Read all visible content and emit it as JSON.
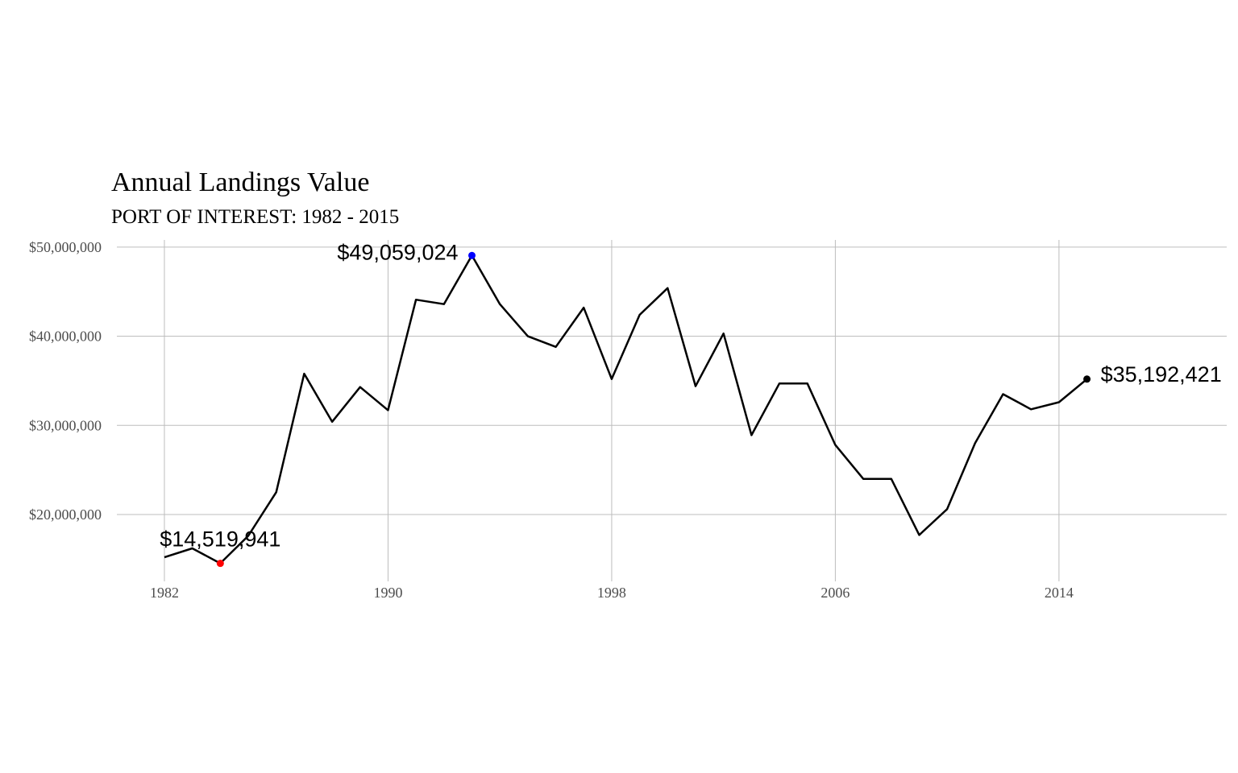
{
  "chart_data": {
    "type": "line",
    "title": "Annual Landings Value",
    "subtitle": "PORT OF INTEREST: 1982 - 2015",
    "xlabel": "",
    "ylabel": "",
    "x_ticks": [
      1982,
      1990,
      1998,
      2006,
      2014
    ],
    "y_ticks": [
      20000000,
      30000000,
      40000000,
      50000000
    ],
    "y_tick_labels": [
      "$20,000,000",
      "$30,000,000",
      "$40,000,000",
      "$50,000,000"
    ],
    "xlim": [
      1980.3,
      2020
    ],
    "ylim": [
      12500000,
      50800000
    ],
    "grid": true,
    "series": [
      {
        "color": "#000000",
        "x": [
          1982,
          1983,
          1984,
          1985,
          1986,
          1987,
          1988,
          1989,
          1990,
          1991,
          1992,
          1993,
          1994,
          1995,
          1996,
          1997,
          1998,
          1999,
          2000,
          2001,
          2002,
          2003,
          2004,
          2005,
          2006,
          2007,
          2008,
          2009,
          2010,
          2011,
          2012,
          2013,
          2014,
          2015
        ],
        "values": [
          15200000,
          16200000,
          14519941,
          17600000,
          22500000,
          35800000,
          30400000,
          34300000,
          31700000,
          44100000,
          43600000,
          49059024,
          43600000,
          40000000,
          38800000,
          43200000,
          35200000,
          42400000,
          45400000,
          34400000,
          40300000,
          28900000,
          34700000,
          34700000,
          27800000,
          24000000,
          24000000,
          17700000,
          20600000,
          28000000,
          33500000,
          31800000,
          32600000,
          35192421
        ]
      }
    ],
    "highlights": [
      {
        "x": 1984,
        "y": 14519941,
        "label": "$14,519,941",
        "color": "#ff0000",
        "position": "above"
      },
      {
        "x": 1993,
        "y": 49059024,
        "label": "$49,059,024",
        "color": "#0000ff",
        "position": "left"
      },
      {
        "x": 2015,
        "y": 35192421,
        "label": "$35,192,421",
        "color": "#000000",
        "position": "right"
      }
    ]
  }
}
